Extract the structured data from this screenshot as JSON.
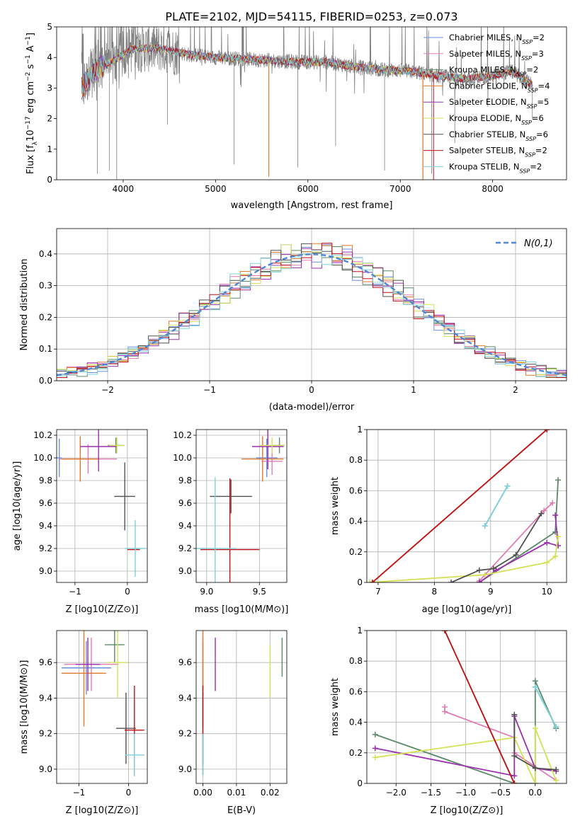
{
  "figure": {
    "title": "PLATE=2102, MJD=54115, FIBERID=0253, z=0.073"
  },
  "legend_items": [
    {
      "name": "Chabrier MILES",
      "n_ssp": "2",
      "color": "#6d8fe3"
    },
    {
      "name": "Salpeter MILES",
      "n_ssp": "3",
      "color": "#e07bb4"
    },
    {
      "name": "Kroupa MILES",
      "n_ssp": "2",
      "color": "#5b8a6a"
    },
    {
      "name": "Chabrier ELODIE",
      "n_ssp": "4",
      "color": "#e07a2e"
    },
    {
      "name": "Salpeter ELODIE",
      "n_ssp": "5",
      "color": "#9b2fae"
    },
    {
      "name": "Kroupa ELODIE",
      "n_ssp": "6",
      "color": "#d4e157"
    },
    {
      "name": "Chabrier STELIB",
      "n_ssp": "6",
      "color": "#505050"
    },
    {
      "name": "Salpeter STELIB",
      "n_ssp": "2",
      "color": "#c0101a"
    },
    {
      "name": "Kroupa STELIB",
      "n_ssp": "2",
      "color": "#7fd3d9"
    }
  ],
  "chart_data": [
    {
      "id": "spectrum",
      "type": "line",
      "xlabel": "wavelength [Angstrom, rest frame]",
      "ylabel": "Flux [f",
      "ylabel_parts": [
        "Flux [f",
        "λ",
        "10",
        "−17",
        " erg cm",
        "−2",
        " s",
        "−1",
        " A",
        "−1",
        "]"
      ],
      "xlim": [
        3280,
        8800
      ],
      "ylim": [
        0,
        5
      ],
      "xticks": [
        4000,
        5000,
        6000,
        7000,
        8000
      ],
      "yticks": [
        0,
        1,
        2,
        3,
        4,
        5
      ],
      "grid": false,
      "legend": "right",
      "data_range_x": [
        3550,
        8430
      ],
      "continuum_knots": [
        [
          3550,
          3.0
        ],
        [
          3700,
          3.6
        ],
        [
          3900,
          3.9
        ],
        [
          4100,
          4.3
        ],
        [
          4400,
          4.3
        ],
        [
          4700,
          4.1
        ],
        [
          5000,
          4.0
        ],
        [
          5300,
          3.95
        ],
        [
          5600,
          3.9
        ],
        [
          5900,
          3.85
        ],
        [
          6200,
          3.85
        ],
        [
          6500,
          3.7
        ],
        [
          6800,
          3.6
        ],
        [
          7100,
          3.55
        ],
        [
          7400,
          3.4
        ],
        [
          7700,
          3.3
        ],
        [
          8000,
          3.4
        ],
        [
          8200,
          3.55
        ],
        [
          8430,
          3.1
        ]
      ],
      "spikes": [
        [
          5577,
          0.1
        ],
        [
          7245,
          0.05
        ],
        [
          6830,
          0.3
        ],
        [
          3720,
          0.2
        ],
        [
          3850,
          0.3
        ],
        [
          3930,
          0.0
        ],
        [
          4480,
          1.8
        ],
        [
          5200,
          0.5
        ],
        [
          5890,
          0.4
        ],
        [
          6300,
          1.1
        ],
        [
          7590,
          1.2
        ],
        [
          7340,
          0.2
        ],
        [
          8430,
          2.0
        ]
      ]
    },
    {
      "id": "residuals",
      "type": "step",
      "xlabel": "(data-model)/error",
      "ylabel": "Normed distribution",
      "xlim": [
        -2.5,
        2.5
      ],
      "ylim": [
        0,
        0.48
      ],
      "xticks": [
        -2,
        -1,
        0,
        1,
        2
      ],
      "xtick_labels": [
        "−2",
        "−1",
        "0",
        "1",
        "2"
      ],
      "yticks": [
        0.0,
        0.1,
        0.2,
        0.3,
        0.4
      ],
      "grid": true,
      "legend": "top-right",
      "legend_label": "N(0,1)",
      "bin_width": 0.1,
      "bin_start": -2.5
    },
    {
      "id": "age_vs_Z",
      "type": "errorbar",
      "xlabel": "Z [log10(Z/Z⊙)]",
      "ylabel": "age  [log10(age/yr)]",
      "xlim": [
        -1.35,
        0.38
      ],
      "ylim": [
        8.9,
        10.25
      ],
      "xticks": [
        -1,
        0
      ],
      "xtick_labels": [
        "−1",
        "0"
      ],
      "yticks": [
        9.0,
        9.2,
        9.4,
        9.6,
        9.8,
        10.0,
        10.2
      ],
      "grid": true,
      "points": [
        {
          "series": "Chabrier MILES",
          "x": -1.3,
          "y": 10.0,
          "xerr": 0.05,
          "yerr": 0.17,
          "color": "#6d8fe3"
        },
        {
          "series": "Salpeter MILES",
          "x": -0.75,
          "y": 9.99,
          "xerr": 0.55,
          "yerr": 0.13,
          "color": "#e07bb4"
        },
        {
          "series": "Kroupa MILES",
          "x": -0.22,
          "y": 10.11,
          "xerr": 0.15,
          "yerr": 0.07,
          "color": "#5b8a6a"
        },
        {
          "series": "Chabrier ELODIE",
          "x": -0.9,
          "y": 9.99,
          "xerr": 0.35,
          "yerr": 0.2,
          "color": "#e07a2e"
        },
        {
          "series": "Salpeter ELODIE",
          "x": -0.55,
          "y": 10.1,
          "xerr": 0.35,
          "yerr": 0.22,
          "color": "#9b2fae"
        },
        {
          "series": "Kroupa ELODIE",
          "x": -0.2,
          "y": 10.11,
          "xerr": 0.15,
          "yerr": 0.07,
          "color": "#d4e157"
        },
        {
          "series": "Chabrier STELIB",
          "x": -0.05,
          "y": 9.66,
          "xerr": 0.2,
          "yerr": 0.3,
          "color": "#505050"
        },
        {
          "series": "Salpeter STELIB",
          "x": 0.12,
          "y": 9.19,
          "xerr": 0.12,
          "yerr": 0.0,
          "color": "#c0101a"
        },
        {
          "series": "Kroupa STELIB",
          "x": 0.15,
          "y": 9.2,
          "xerr": 0.2,
          "yerr": 0.25,
          "color": "#7fd3d9"
        }
      ]
    },
    {
      "id": "age_vs_mass",
      "type": "errorbar",
      "xlabel": "mass [log10(M/M⊙)]",
      "xlim": [
        8.9,
        9.76
      ],
      "ylim": [
        8.9,
        10.25
      ],
      "xticks": [
        9.0,
        9.5
      ],
      "yticks": [
        9.0,
        9.2,
        9.4,
        9.6,
        9.8,
        10.0,
        10.2
      ],
      "grid": true,
      "points": [
        {
          "series": "Chabrier MILES",
          "x": 9.57,
          "y": 10.0,
          "xerr": 0.1,
          "yerr": 0.17,
          "color": "#6d8fe3"
        },
        {
          "series": "Salpeter MILES",
          "x": 9.62,
          "y": 9.97,
          "xerr": 0.1,
          "yerr": 0.12,
          "color": "#e07bb4"
        },
        {
          "series": "Kroupa MILES",
          "x": 9.69,
          "y": 10.11,
          "xerr": 0.05,
          "yerr": 0.07,
          "color": "#5b8a6a"
        },
        {
          "series": "Chabrier ELODIE",
          "x": 9.53,
          "y": 9.99,
          "xerr": 0.2,
          "yerr": 0.2,
          "color": "#e07a2e"
        },
        {
          "series": "Salpeter ELODIE",
          "x": 9.58,
          "y": 10.1,
          "xerr": 0.15,
          "yerr": 0.2,
          "color": "#9b2fae"
        },
        {
          "series": "Kroupa ELODIE",
          "x": 9.62,
          "y": 10.11,
          "xerr": 0.12,
          "yerr": 0.07,
          "color": "#d4e157"
        },
        {
          "series": "Chabrier STELIB",
          "x": 9.23,
          "y": 9.66,
          "xerr": 0.2,
          "yerr": 0.15,
          "color": "#505050"
        },
        {
          "series": "Salpeter STELIB",
          "x": 9.22,
          "y": 9.19,
          "xerr": 0.28,
          "yerr": 0.63,
          "color": "#c0101a"
        },
        {
          "series": "Kroupa STELIB",
          "x": 9.08,
          "y": 9.2,
          "xerr": 0.2,
          "yerr": 0.63,
          "color": "#7fd3d9"
        }
      ]
    },
    {
      "id": "weight_vs_age",
      "type": "line",
      "xlabel": "age  [log10(age/yr)]",
      "ylabel": "mass weight",
      "xlim": [
        6.8,
        10.35
      ],
      "ylim": [
        0,
        1
      ],
      "xticks": [
        7,
        8,
        9,
        10
      ],
      "yticks": [
        0.0,
        0.2,
        0.4,
        0.6,
        0.8,
        1.0
      ],
      "grid": true,
      "series": [
        {
          "name": "Chabrier MILES",
          "color": "#6d8fe3",
          "x": [
            8.9,
            9.3
          ],
          "y": [
            0.37,
            0.63
          ]
        },
        {
          "name": "Salpeter MILES",
          "color": "#e07bb4",
          "x": [
            8.8,
            9.95,
            10.1
          ],
          "y": [
            0.01,
            0.47,
            0.52
          ]
        },
        {
          "name": "Kroupa MILES",
          "color": "#5b8a6a",
          "x": [
            8.8,
            10.15,
            10.2
          ],
          "y": [
            0.0,
            0.33,
            0.67
          ]
        },
        {
          "name": "Chabrier ELODIE",
          "color": "#e07a2e",
          "x": [
            6.9,
            10.0
          ],
          "y": [
            0.0,
            1.0
          ]
        },
        {
          "name": "Salpeter ELODIE",
          "color": "#9b2fae",
          "x": [
            8.8,
            9.1,
            10.0,
            10.2,
            10.15
          ],
          "y": [
            0.0,
            0.08,
            0.26,
            0.24,
            0.44
          ]
        },
        {
          "name": "Kroupa ELODIE",
          "color": "#d4e157",
          "x": [
            6.85,
            8.9,
            10.0,
            10.15,
            10.2
          ],
          "y": [
            0.0,
            0.05,
            0.13,
            0.17,
            0.3
          ]
        },
        {
          "name": "Chabrier STELIB",
          "color": "#505050",
          "x": [
            8.3,
            8.8,
            9.05,
            9.45,
            9.9
          ],
          "y": [
            0.0,
            0.08,
            0.09,
            0.18,
            0.45
          ]
        },
        {
          "name": "Salpeter STELIB",
          "color": "#c0101a",
          "x": [
            6.9,
            10.0
          ],
          "y": [
            0.0,
            1.0
          ]
        },
        {
          "name": "Kroupa STELIB",
          "color": "#7fd3d9",
          "x": [
            8.9,
            9.3
          ],
          "y": [
            0.37,
            0.63
          ]
        }
      ]
    },
    {
      "id": "mass_vs_Z",
      "type": "errorbar",
      "xlabel": "Z [log10(Z/Z⊙)]",
      "ylabel": "mass [log10(M/M⊙)]",
      "xlim": [
        -1.45,
        0.38
      ],
      "ylim": [
        8.92,
        9.78
      ],
      "xticks": [
        -1,
        0
      ],
      "xtick_labels": [
        "−1",
        "0"
      ],
      "yticks": [
        9.0,
        9.2,
        9.4,
        9.6
      ],
      "grid": true,
      "points": [
        {
          "series": "Chabrier MILES",
          "x": -0.85,
          "y": 9.57,
          "xerr": 0.5,
          "yerr": 0.15,
          "color": "#6d8fe3"
        },
        {
          "series": "Salpeter MILES",
          "x": -0.75,
          "y": 9.59,
          "xerr": 0.55,
          "yerr": 0.15,
          "color": "#e07bb4"
        },
        {
          "series": "Kroupa MILES",
          "x": -0.28,
          "y": 9.7,
          "xerr": 0.2,
          "yerr": 0.1,
          "color": "#5b8a6a"
        },
        {
          "series": "Chabrier ELODIE",
          "x": -0.9,
          "y": 9.54,
          "xerr": 0.45,
          "yerr": 0.3,
          "color": "#e07a2e"
        },
        {
          "series": "Salpeter ELODIE",
          "x": -0.82,
          "y": 9.59,
          "xerr": 0.25,
          "yerr": 0.15,
          "color": "#9b2fae"
        },
        {
          "series": "Kroupa ELODIE",
          "x": -0.22,
          "y": 9.6,
          "xerr": 0.2,
          "yerr": 0.2,
          "color": "#d4e157"
        },
        {
          "series": "Chabrier STELIB",
          "x": -0.05,
          "y": 9.23,
          "xerr": 0.2,
          "yerr": 0.2,
          "color": "#505050"
        },
        {
          "series": "Salpeter STELIB",
          "x": 0.12,
          "y": 9.22,
          "xerr": 0.2,
          "yerr": 0.25,
          "color": "#c0101a"
        },
        {
          "series": "Kroupa STELIB",
          "x": 0.12,
          "y": 9.08,
          "xerr": 0.2,
          "yerr": 0.12,
          "color": "#7fd3d9"
        }
      ]
    },
    {
      "id": "mass_vs_ebv",
      "type": "errorbar",
      "xlabel": "E(B-V)",
      "xlim": [
        -0.002,
        0.025
      ],
      "ylim": [
        8.92,
        9.78
      ],
      "xticks": [
        0.0,
        0.01,
        0.02
      ],
      "xtick_labels": [
        "0.00",
        "0.01",
        "0.02"
      ],
      "yticks": [
        9.0,
        9.2,
        9.4,
        9.6
      ],
      "grid": true,
      "points": [
        {
          "series": "Chabrier MILES",
          "x": 0.0,
          "y": 9.57,
          "xerr": 0,
          "yerr": 0.15,
          "color": "#6d8fe3"
        },
        {
          "series": "Salpeter MILES",
          "x": 0.0,
          "y": 9.59,
          "xerr": 0,
          "yerr": 0.15,
          "color": "#e07bb4"
        },
        {
          "series": "Kroupa MILES",
          "x": 0.0236,
          "y": 9.63,
          "xerr": 0,
          "yerr": 0.11,
          "color": "#5b8a6a"
        },
        {
          "series": "Chabrier ELODIE",
          "x": 0.0,
          "y": 9.54,
          "xerr": 0,
          "yerr": 0.3,
          "color": "#e07a2e"
        },
        {
          "series": "Salpeter ELODIE",
          "x": 0.0037,
          "y": 9.59,
          "xerr": 0,
          "yerr": 0.15,
          "color": "#9b2fae"
        },
        {
          "series": "Kroupa ELODIE",
          "x": 0.02,
          "y": 9.55,
          "xerr": 0,
          "yerr": 0.15,
          "color": "#d4e157"
        },
        {
          "series": "Chabrier STELIB",
          "x": 0.0,
          "y": 9.23,
          "xerr": 0,
          "yerr": 0.2,
          "color": "#505050"
        },
        {
          "series": "Salpeter STELIB",
          "x": 0.0,
          "y": 9.22,
          "xerr": 0,
          "yerr": 0.25,
          "color": "#c0101a"
        },
        {
          "series": "Kroupa STELIB",
          "x": 0.0,
          "y": 9.08,
          "xerr": 0,
          "yerr": 0.12,
          "color": "#7fd3d9"
        }
      ]
    },
    {
      "id": "weight_vs_Z",
      "type": "line",
      "xlabel": "Z [log10(Z/Z⊙)]",
      "ylabel": "mass weight",
      "xlim": [
        -2.42,
        0.45
      ],
      "ylim": [
        0,
        1
      ],
      "xticks": [
        -2.0,
        -1.5,
        -1.0,
        -0.5,
        0.0
      ],
      "xtick_labels": [
        "−2.0",
        "−1.5",
        "−1.0",
        "−0.5",
        "0.0"
      ],
      "yticks": [
        0.0,
        0.2,
        0.4,
        0.6,
        0.8,
        1.0
      ],
      "grid": true,
      "series": [
        {
          "name": "Chabrier MILES",
          "color": "#6d8fe3",
          "x": [
            0.0,
            0.3
          ],
          "y": [
            0.63,
            0.37
          ]
        },
        {
          "name": "Salpeter MILES",
          "color": "#e07bb4",
          "x": [
            -1.3,
            -1.3,
            -0.3,
            -0.3,
            0.3
          ],
          "y": [
            0.5,
            0.47,
            0.3,
            0.2,
            0.02
          ]
        },
        {
          "name": "Kroupa MILES",
          "color": "#5b8a6a",
          "x": [
            -2.3,
            -0.3,
            0.0,
            0.0,
            0.3
          ],
          "y": [
            0.32,
            0.0,
            0.0,
            0.67,
            0.36
          ]
        },
        {
          "name": "Chabrier ELODIE",
          "color": "#e07a2e",
          "x": [
            -1.3,
            -0.3,
            -0.3
          ],
          "y": [
            1.0,
            0.0,
            0.0
          ]
        },
        {
          "name": "Salpeter ELODIE",
          "color": "#9b2fae",
          "x": [
            -2.3,
            -0.3,
            -0.3,
            0.0,
            0.3
          ],
          "y": [
            0.23,
            0.05,
            0.44,
            0.1,
            0.08
          ]
        },
        {
          "name": "Kroupa ELODIE",
          "color": "#d4e157",
          "x": [
            -2.3,
            -0.3,
            0.0,
            0.0,
            0.3
          ],
          "y": [
            0.17,
            0.3,
            0.0,
            0.36,
            0.02
          ]
        },
        {
          "name": "Chabrier STELIB",
          "color": "#505050",
          "x": [
            -0.3,
            -0.3,
            0.0,
            0.3
          ],
          "y": [
            0.45,
            0.18,
            0.1,
            0.09
          ]
        },
        {
          "name": "Salpeter STELIB",
          "color": "#c0101a",
          "x": [
            -1.3,
            -0.3
          ],
          "y": [
            1.0,
            0.0
          ]
        },
        {
          "name": "Kroupa STELIB",
          "color": "#7fd3d9",
          "x": [
            0.0,
            0.3
          ],
          "y": [
            0.63,
            0.37
          ]
        }
      ]
    }
  ]
}
